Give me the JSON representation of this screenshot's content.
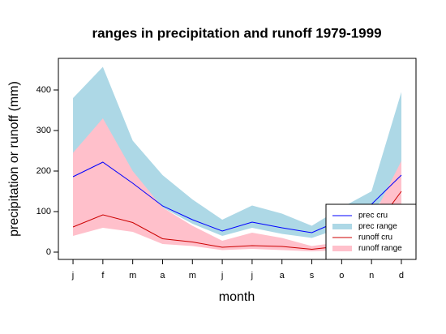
{
  "chart_data": {
    "type": "line",
    "title": "ranges in precipitation and runoff 1979-1999",
    "x_label": "month",
    "y_label": "precipitation or runoff (mm)",
    "categories": [
      "j",
      "f",
      "m",
      "a",
      "m",
      "j",
      "j",
      "a",
      "s",
      "o",
      "n",
      "d"
    ],
    "ylim": [
      -18,
      478
    ],
    "yticks": [
      0,
      100,
      200,
      300,
      400
    ],
    "legend": "bottom-right",
    "series": [
      {
        "name": "prec cru",
        "color": "#0000ff",
        "values": [
          186,
          222,
          170,
          114,
          80,
          52,
          74,
          60,
          48,
          80,
          118,
          190
        ]
      },
      {
        "name": "prec range",
        "color": "#add8e6",
        "low": [
          240,
          320,
          180,
          110,
          70,
          40,
          60,
          45,
          35,
          60,
          100,
          180
        ],
        "high": [
          380,
          457,
          275,
          190,
          130,
          80,
          115,
          95,
          65,
          110,
          150,
          395
        ]
      },
      {
        "name": "runoff cru",
        "color": "#cc0000",
        "values": [
          62,
          92,
          73,
          33,
          25,
          12,
          16,
          14,
          7,
          15,
          50,
          150
        ]
      },
      {
        "name": "runoff range",
        "color": "#ffc0cb",
        "low": [
          40,
          60,
          50,
          20,
          15,
          5,
          8,
          5,
          2,
          5,
          20,
          80
        ],
        "high": [
          245,
          330,
          200,
          110,
          65,
          28,
          48,
          35,
          15,
          25,
          80,
          225
        ]
      }
    ]
  }
}
